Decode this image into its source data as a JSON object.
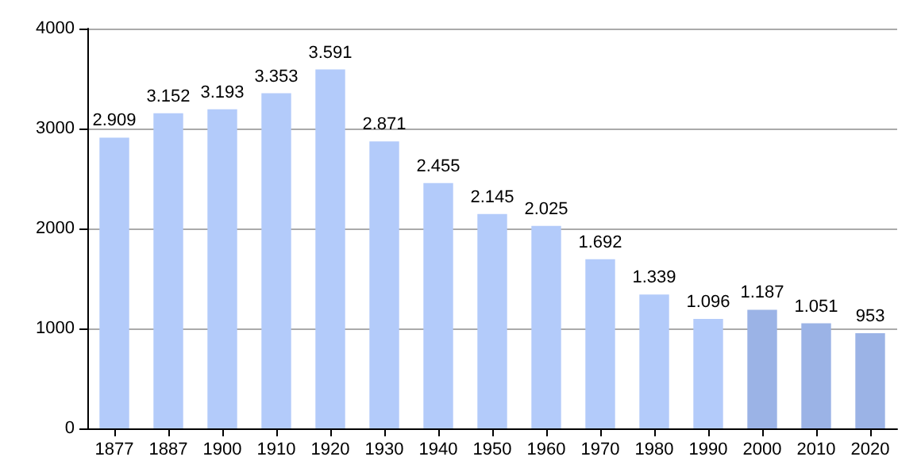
{
  "chart_data": {
    "type": "bar",
    "categories": [
      "1877",
      "1887",
      "1900",
      "1910",
      "1920",
      "1930",
      "1940",
      "1950",
      "1960",
      "1970",
      "1980",
      "1990",
      "2000",
      "2010",
      "2020"
    ],
    "values": [
      2909,
      3152,
      3193,
      3353,
      3591,
      2871,
      2455,
      2145,
      2025,
      1692,
      1339,
      1096,
      1187,
      1051,
      953
    ],
    "value_labels": [
      "2.909",
      "3.152",
      "3.193",
      "3.353",
      "3.591",
      "2.871",
      "2.455",
      "2.145",
      "2.025",
      "1.692",
      "1.339",
      "1.096",
      "1.187",
      "1.051",
      "953"
    ],
    "colors": [
      "#b3cbfa",
      "#b3cbfa",
      "#b3cbfa",
      "#b3cbfa",
      "#b3cbfa",
      "#b3cbfa",
      "#b3cbfa",
      "#b3cbfa",
      "#b3cbfa",
      "#b3cbfa",
      "#b3cbfa",
      "#b3cbfa",
      "#9bb3e6",
      "#9bb3e6",
      "#9bb3e6"
    ],
    "ylim": [
      0,
      4000
    ],
    "yticks": [
      0,
      1000,
      2000,
      3000,
      4000
    ],
    "grid": "y"
  }
}
